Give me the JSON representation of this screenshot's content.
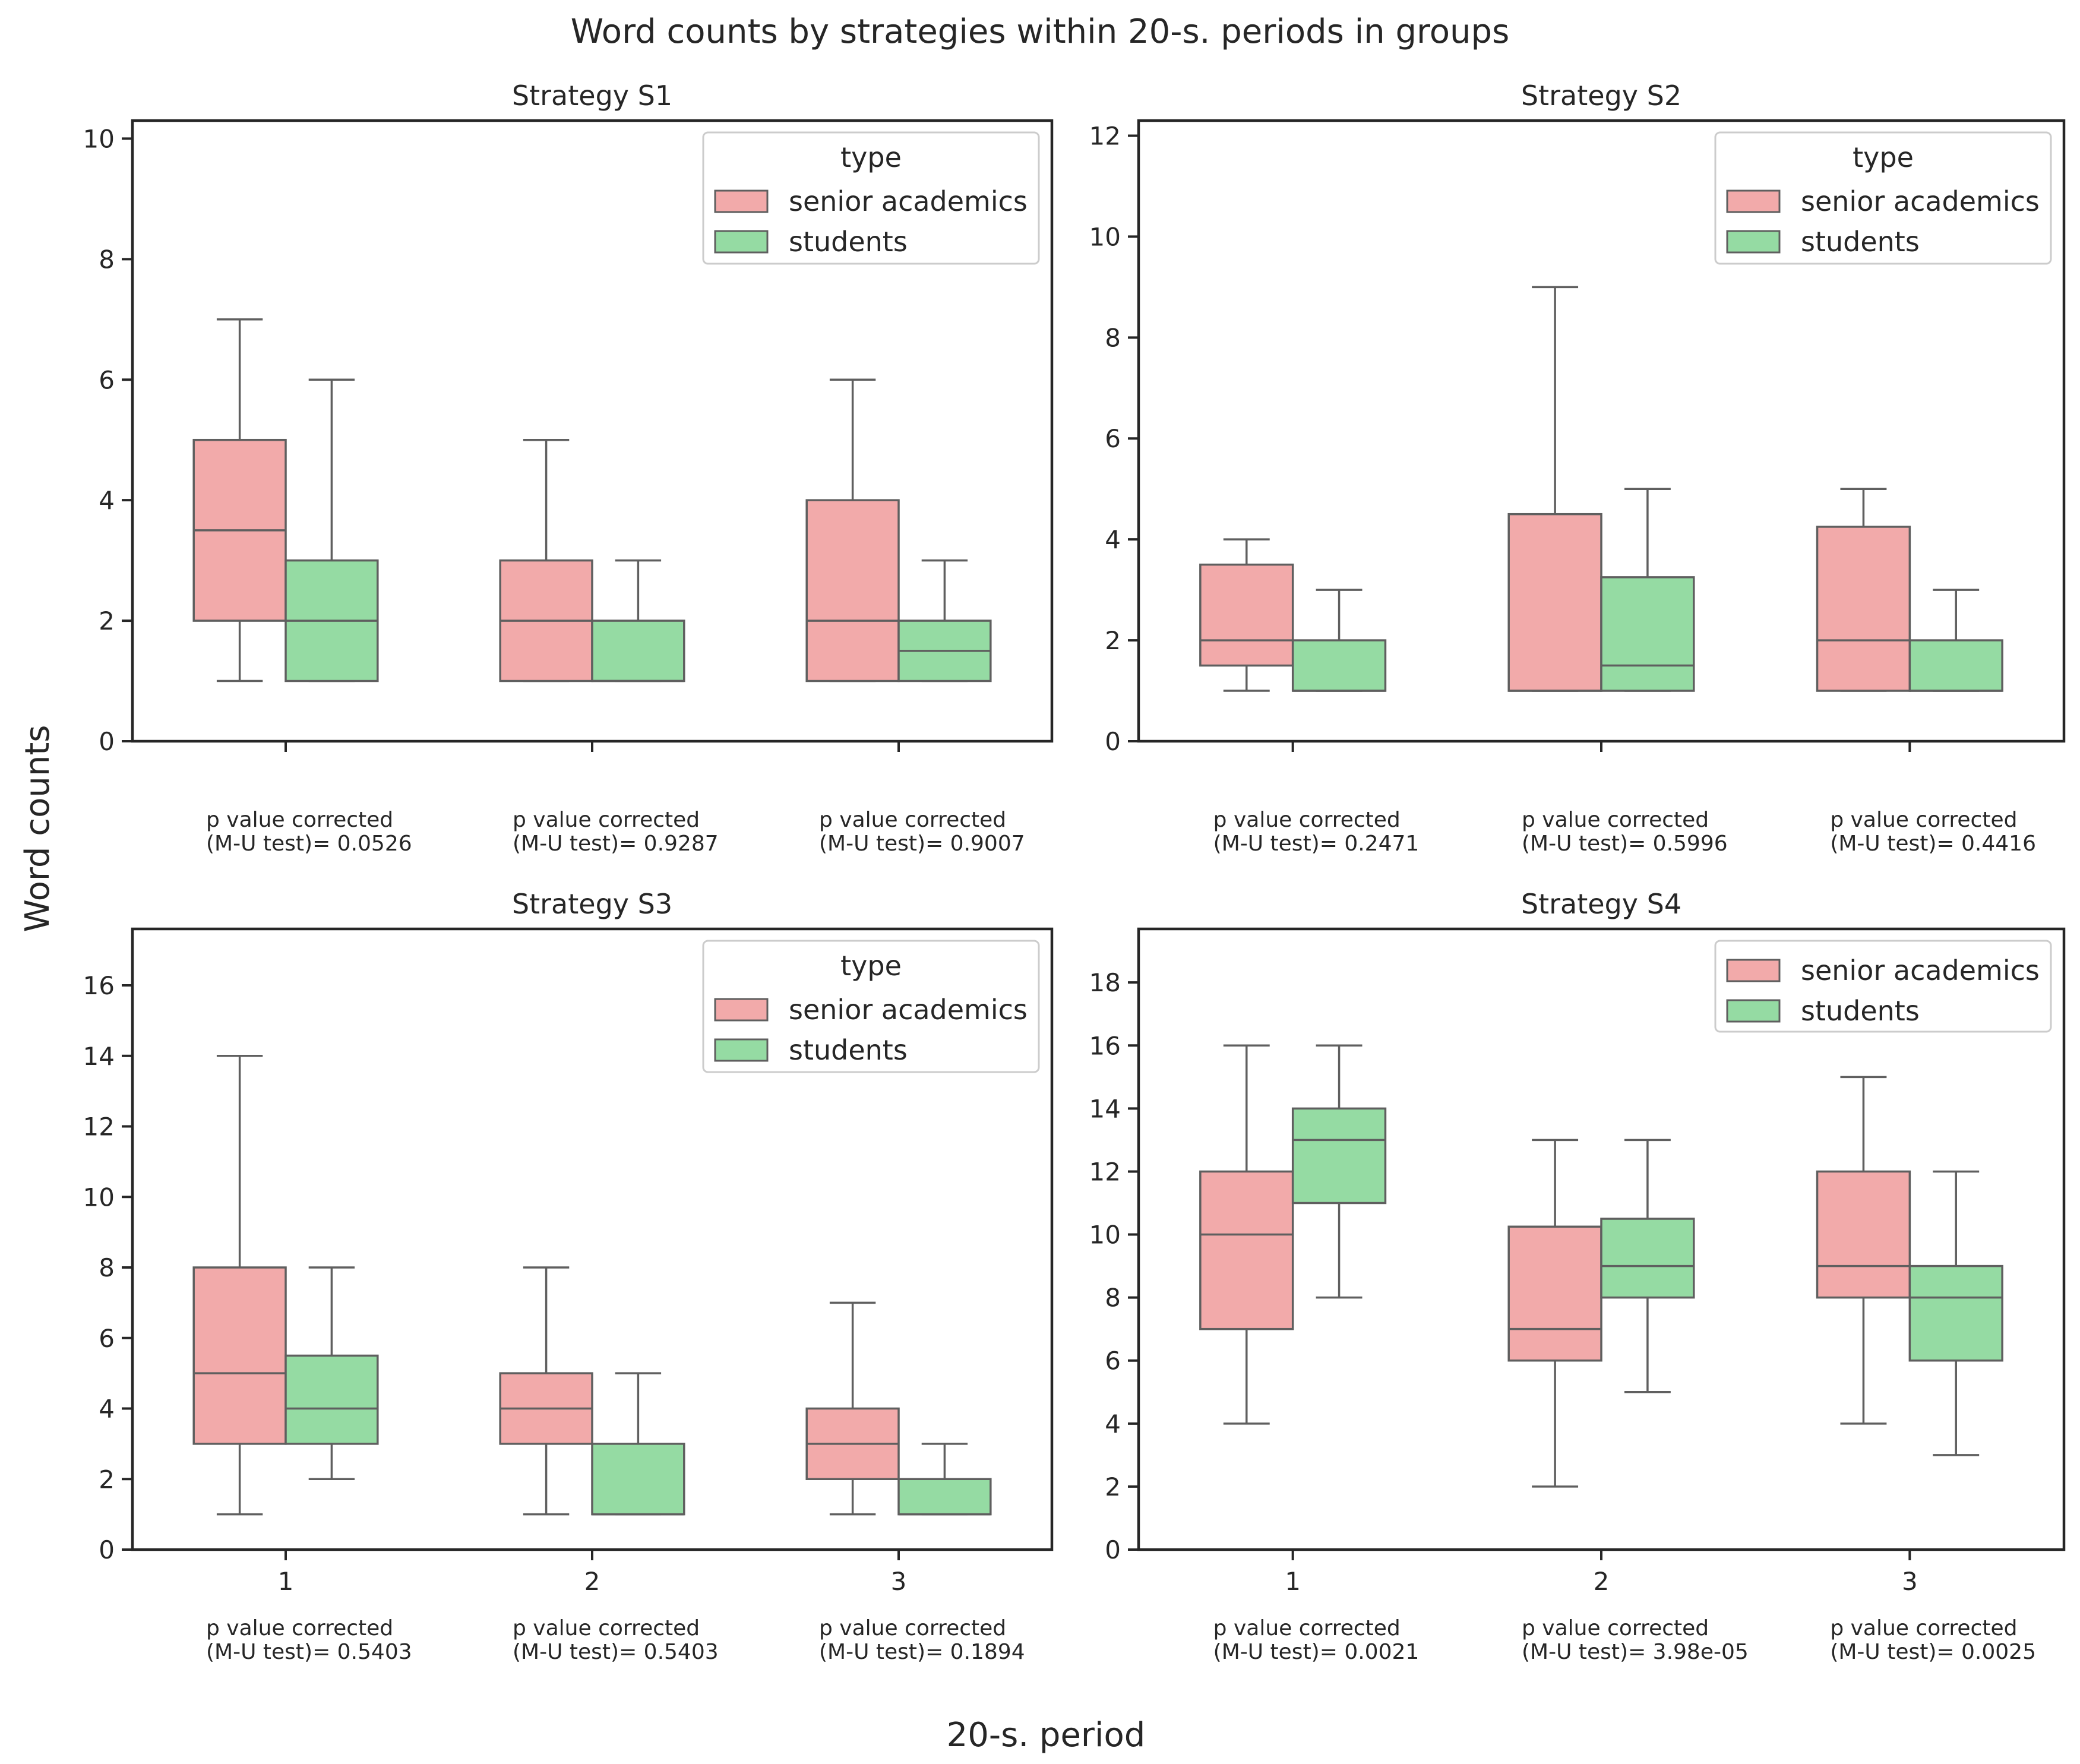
{
  "chart_data": {
    "type": "box",
    "title": "Word counts by strategies within 20-s. periods in groups",
    "xlabel": "20-s. period",
    "ylabel": "Word counts",
    "colors": {
      "senior academics": "#f2aaaa",
      "students": "#95dba3",
      "edge": "#5f5f5f"
    },
    "panels": [
      {
        "title": "Strategy S1",
        "ylim": [
          0,
          10.3
        ],
        "yticks": [
          0,
          2,
          4,
          6,
          8,
          10
        ],
        "show_xticklabels": false,
        "legend": {
          "title": "type",
          "entries": [
            "senior academics",
            "students"
          ]
        },
        "categories": [
          "1",
          "2",
          "3"
        ],
        "notes": [
          [
            "p value corrected",
            "(M-U test)= 0.0526"
          ],
          [
            "p value corrected",
            "(M-U test)= 0.9287"
          ],
          [
            "p value corrected",
            "(M-U test)= 0.9007"
          ]
        ],
        "series": [
          {
            "name": "senior academics",
            "boxes": [
              {
                "whislo": 1,
                "q1": 2,
                "med": 3.5,
                "q3": 5,
                "whishi": 7
              },
              {
                "whislo": 1,
                "q1": 1,
                "med": 2,
                "q3": 3,
                "whishi": 5
              },
              {
                "whislo": 1,
                "q1": 1,
                "med": 2,
                "q3": 4,
                "whishi": 6
              }
            ]
          },
          {
            "name": "students",
            "boxes": [
              {
                "whislo": 1,
                "q1": 1,
                "med": 2,
                "q3": 3,
                "whishi": 6
              },
              {
                "whislo": 1,
                "q1": 1,
                "med": 1,
                "q3": 2,
                "whishi": 3
              },
              {
                "whislo": 1,
                "q1": 1,
                "med": 1.5,
                "q3": 2,
                "whishi": 3
              }
            ]
          }
        ]
      },
      {
        "title": "Strategy S2",
        "ylim": [
          0,
          12.3
        ],
        "yticks": [
          0,
          2,
          4,
          6,
          8,
          10,
          12
        ],
        "show_xticklabels": false,
        "legend": {
          "title": "type",
          "entries": [
            "senior academics",
            "students"
          ]
        },
        "categories": [
          "1",
          "2",
          "3"
        ],
        "notes": [
          [
            "p value corrected",
            "(M-U test)= 0.2471"
          ],
          [
            "p value corrected",
            "(M-U test)= 0.5996"
          ],
          [
            "p value corrected",
            "(M-U test)= 0.4416"
          ]
        ],
        "series": [
          {
            "name": "senior academics",
            "boxes": [
              {
                "whislo": 1,
                "q1": 1.5,
                "med": 2,
                "q3": 3.5,
                "whishi": 4
              },
              {
                "whislo": 1,
                "q1": 1,
                "med": 1,
                "q3": 4.5,
                "whishi": 9
              },
              {
                "whislo": 1,
                "q1": 1,
                "med": 2,
                "q3": 4.25,
                "whishi": 5
              }
            ]
          },
          {
            "name": "students",
            "boxes": [
              {
                "whislo": 1,
                "q1": 1,
                "med": 1,
                "q3": 2,
                "whishi": 3
              },
              {
                "whislo": 1,
                "q1": 1,
                "med": 1.5,
                "q3": 3.25,
                "whishi": 5
              },
              {
                "whislo": 1,
                "q1": 1,
                "med": 1,
                "q3": 2,
                "whishi": 3
              }
            ]
          }
        ]
      },
      {
        "title": "Strategy S3",
        "ylim": [
          0,
          17.6
        ],
        "yticks": [
          0,
          2,
          4,
          6,
          8,
          10,
          12,
          14,
          16
        ],
        "show_xticklabels": true,
        "legend": {
          "title": "type",
          "entries": [
            "senior academics",
            "students"
          ]
        },
        "categories": [
          "1",
          "2",
          "3"
        ],
        "notes": [
          [
            "p value corrected",
            "(M-U test)= 0.5403"
          ],
          [
            "p value corrected",
            "(M-U test)= 0.5403"
          ],
          [
            "p value corrected",
            "(M-U test)= 0.1894"
          ]
        ],
        "series": [
          {
            "name": "senior academics",
            "boxes": [
              {
                "whislo": 1,
                "q1": 3,
                "med": 5,
                "q3": 8,
                "whishi": 14
              },
              {
                "whislo": 1,
                "q1": 3,
                "med": 4,
                "q3": 5,
                "whishi": 8
              },
              {
                "whislo": 1,
                "q1": 2,
                "med": 3,
                "q3": 4,
                "whishi": 7
              }
            ]
          },
          {
            "name": "students",
            "boxes": [
              {
                "whislo": 2,
                "q1": 3,
                "med": 4,
                "q3": 5.5,
                "whishi": 8
              },
              {
                "whislo": 1,
                "q1": 1,
                "med": 1,
                "q3": 3,
                "whishi": 5
              },
              {
                "whislo": 1,
                "q1": 1,
                "med": 1,
                "q3": 2,
                "whishi": 3
              }
            ]
          }
        ]
      },
      {
        "title": "Strategy S4",
        "ylim": [
          0,
          19.7
        ],
        "yticks": [
          0,
          2,
          4,
          6,
          8,
          10,
          12,
          14,
          16,
          18
        ],
        "show_xticklabels": true,
        "legend": {
          "title": "",
          "entries": [
            "senior academics",
            "students"
          ]
        },
        "categories": [
          "1",
          "2",
          "3"
        ],
        "notes": [
          [
            "p value corrected",
            "(M-U test)= 0.0021"
          ],
          [
            "p value corrected",
            "(M-U test)= 3.98e-05"
          ],
          [
            "p value corrected",
            "(M-U test)= 0.0025"
          ]
        ],
        "series": [
          {
            "name": "senior academics",
            "boxes": [
              {
                "whislo": 4,
                "q1": 7,
                "med": 10,
                "q3": 12,
                "whishi": 16
              },
              {
                "whislo": 2,
                "q1": 6,
                "med": 7,
                "q3": 10.25,
                "whishi": 13
              },
              {
                "whislo": 4,
                "q1": 8,
                "med": 9,
                "q3": 12,
                "whishi": 15
              }
            ]
          },
          {
            "name": "students",
            "boxes": [
              {
                "whislo": 8,
                "q1": 11,
                "med": 13,
                "q3": 14,
                "whishi": 16
              },
              {
                "whislo": 5,
                "q1": 8,
                "med": 9,
                "q3": 10.5,
                "whishi": 13
              },
              {
                "whislo": 3,
                "q1": 6,
                "med": 8,
                "q3": 9,
                "whishi": 12
              }
            ]
          }
        ]
      }
    ]
  }
}
